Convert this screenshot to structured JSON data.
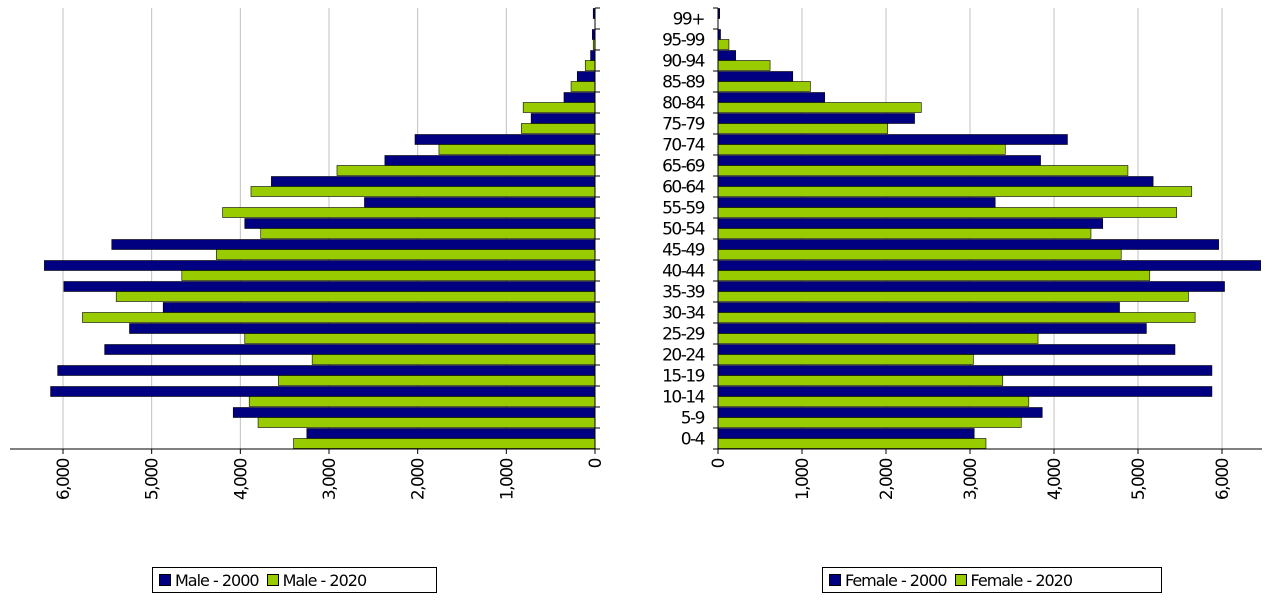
{
  "chart_data": [
    {
      "type": "bar",
      "orientation": "horizontal",
      "x_direction": "reversed",
      "categories": [
        "0-4",
        "5-9",
        "10-14",
        "15-19",
        "20-24",
        "25-29",
        "30-34",
        "35-39",
        "40-44",
        "45-49",
        "50-54",
        "55-59",
        "60-64",
        "65-69",
        "70-74",
        "75-79",
        "80-84",
        "85-89",
        "90-94",
        "95-99",
        "99+"
      ],
      "series": [
        {
          "name": "Male - 2000",
          "color": "#000080",
          "values": [
            3250,
            4080,
            6140,
            6060,
            5530,
            5250,
            4870,
            5990,
            6210,
            5450,
            3950,
            2600,
            3650,
            2370,
            2030,
            720,
            350,
            200,
            50,
            30,
            20
          ]
        },
        {
          "name": "Male - 2020",
          "color": "#99cc00",
          "values": [
            3400,
            3800,
            3900,
            3570,
            3190,
            3950,
            5780,
            5400,
            4660,
            4270,
            3770,
            4200,
            3880,
            2910,
            1760,
            830,
            810,
            270,
            110,
            20,
            0
          ]
        }
      ],
      "xticks": [
        "6,000",
        "5,000",
        "4,000",
        "3,000",
        "2,000",
        "1,000",
        "0"
      ],
      "xlim": [
        0,
        6500
      ],
      "grid": true
    },
    {
      "type": "bar",
      "orientation": "horizontal",
      "categories": [
        "0-4",
        "5-9",
        "10-14",
        "15-19",
        "20-24",
        "25-29",
        "30-34",
        "35-39",
        "40-44",
        "45-49",
        "50-54",
        "55-59",
        "60-64",
        "65-69",
        "70-74",
        "75-79",
        "80-84",
        "85-89",
        "90-94",
        "95-99",
        "99+"
      ],
      "series": [
        {
          "name": "Female - 2000",
          "color": "#000080",
          "values": [
            3050,
            3860,
            5880,
            5880,
            5440,
            5100,
            4780,
            6030,
            6460,
            5960,
            4580,
            3300,
            5180,
            3840,
            4160,
            2340,
            1270,
            890,
            210,
            30,
            20
          ]
        },
        {
          "name": "Female - 2020",
          "color": "#99cc00",
          "values": [
            3190,
            3610,
            3700,
            3390,
            3040,
            3810,
            5680,
            5600,
            5140,
            4800,
            4440,
            5460,
            5640,
            4880,
            3420,
            2020,
            2420,
            1100,
            620,
            130,
            0
          ]
        }
      ],
      "xticks": [
        "0",
        "1,000",
        "2,000",
        "3,000",
        "4,000",
        "5,000",
        "6,000"
      ],
      "xlim": [
        0,
        6500
      ],
      "grid": true
    }
  ],
  "legend_left": {
    "items": [
      {
        "label": "Male - 2000",
        "color": "#000080"
      },
      {
        "label": "Male - 2020",
        "color": "#99cc00"
      }
    ]
  },
  "legend_right": {
    "items": [
      {
        "label": "Female - 2000",
        "color": "#000080"
      },
      {
        "label": "Female - 2020",
        "color": "#99cc00"
      }
    ]
  }
}
